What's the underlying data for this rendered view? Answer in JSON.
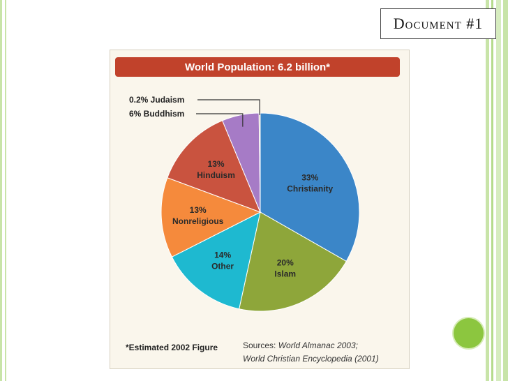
{
  "slide": {
    "doc_label": "Document #1",
    "accent_color": "#8cc63f"
  },
  "footnote": "*Estimated 2002 Figure",
  "sources": {
    "label": "Sources:",
    "line1": "World Almanac 2003;",
    "line2": "World Christian Encyclopedia (2001)"
  },
  "chart_data": {
    "type": "pie",
    "title": "World Population: 6.2 billion*",
    "slices": [
      {
        "label": "Christianity",
        "value": 33,
        "value_label": "33%",
        "color": "#3b86c8"
      },
      {
        "label": "Islam",
        "value": 20,
        "value_label": "20%",
        "color": "#8ea63a"
      },
      {
        "label": "Other",
        "value": 14,
        "value_label": "14%",
        "color": "#1eb9d0"
      },
      {
        "label": "Nonreligious",
        "value": 13,
        "value_label": "13%",
        "color": "#f58a3c"
      },
      {
        "label": "Hinduism",
        "value": 13,
        "value_label": "13%",
        "color": "#c9533f"
      },
      {
        "label": "Buddhism",
        "value": 6,
        "value_label": "6%",
        "color": "#a67bc6"
      },
      {
        "label": "Judaism",
        "value": 0.2,
        "value_label": "0.2%",
        "color": "#c8c0a0"
      }
    ],
    "callouts": [
      {
        "slice": "Judaism",
        "text": "0.2% Judaism"
      },
      {
        "slice": "Buddhism",
        "text": "6% Buddhism"
      }
    ]
  }
}
